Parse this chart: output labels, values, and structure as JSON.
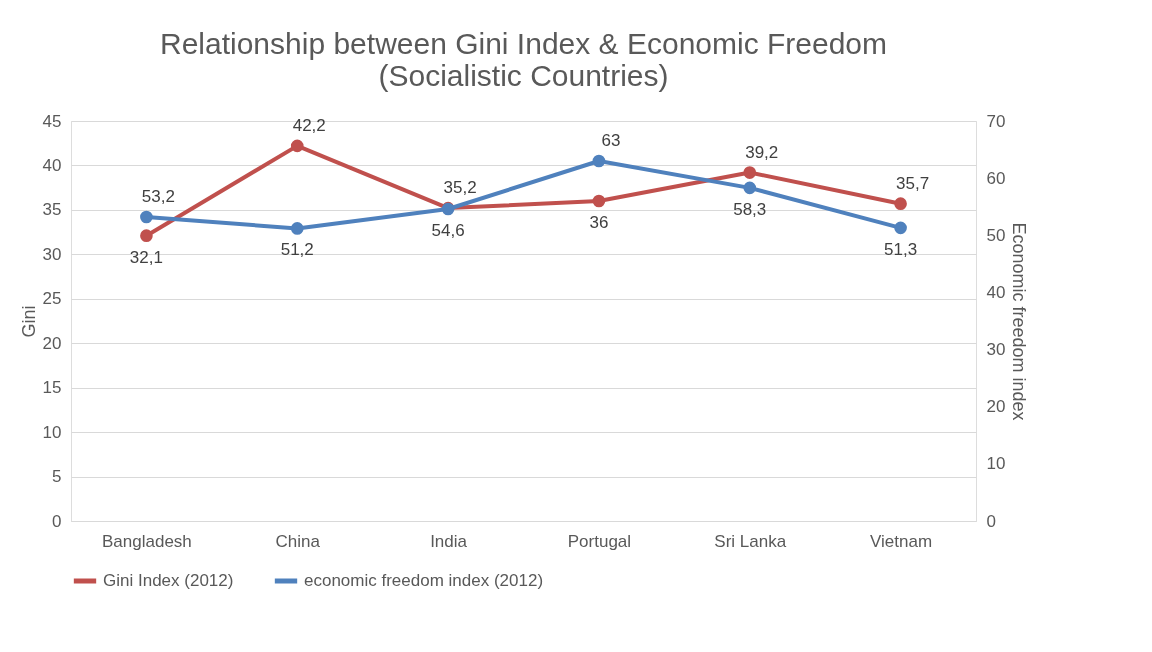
{
  "chart_data": {
    "type": "line",
    "title": "Relationship between Gini Index & Economic Freedom",
    "subtitle": "(Socialistic Countries)",
    "ylabel": "Gini",
    "y2label": "Economic freedom index",
    "categories": [
      "Bangladesh",
      "China",
      "India",
      "Portugal",
      "Sri Lanka",
      "Vietnam"
    ],
    "series": [
      {
        "name": "Gini Index (2012)",
        "color": "#c0504d",
        "values": [
          32.1,
          42.2,
          35.2,
          36,
          39.2,
          35.7
        ],
        "value_labels": [
          "32,1",
          "42,2",
          "35,2",
          "36",
          "39,2",
          "35,7"
        ]
      },
      {
        "name": "economic freedom index (2012)",
        "color": "#4f81bd",
        "axis": "y2",
        "values": [
          53.2,
          51.2,
          54.6,
          63,
          58.3,
          51.3
        ],
        "value_labels": [
          "53,2",
          "51,2",
          "54,6",
          "63",
          "58,3",
          "51,3"
        ]
      }
    ],
    "ylim": [
      0,
      45
    ],
    "yticks": [
      0,
      5,
      10,
      15,
      20,
      25,
      30,
      35,
      40,
      45
    ],
    "y2lim": [
      0,
      70
    ],
    "y2ticks": [
      0,
      10,
      20,
      30,
      40,
      50,
      60,
      70
    ],
    "grid": "y",
    "legend": "bottom",
    "marker": "circle",
    "line_style": "solid"
  }
}
